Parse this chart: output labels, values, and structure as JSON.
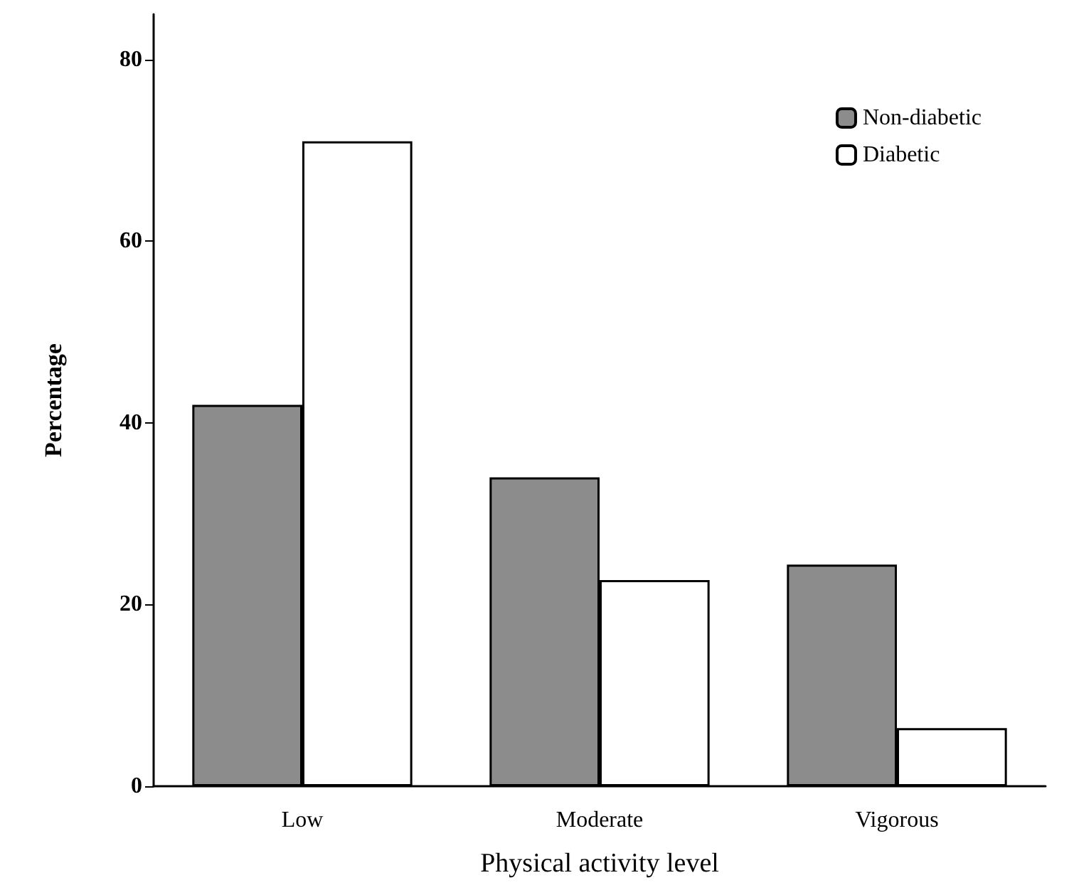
{
  "chart_data": {
    "type": "bar",
    "xlabel": "Physical activity level",
    "ylabel": "Percentage",
    "categories": [
      "Low",
      "Moderate",
      "Vigorous"
    ],
    "series": [
      {
        "name": "Non-diabetic",
        "color": "#8c8c8c",
        "values": [
          42,
          34,
          24.4
        ]
      },
      {
        "name": "Diabetic",
        "color": "#ffffff",
        "values": [
          71,
          22.7,
          6.4
        ]
      }
    ],
    "ylim": [
      0,
      85
    ],
    "yticks": [
      0,
      20,
      40,
      60,
      80
    ],
    "grid": false,
    "legend": "top right"
  }
}
